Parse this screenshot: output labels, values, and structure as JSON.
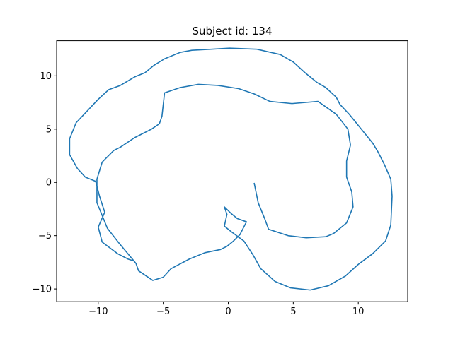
{
  "chart_data": {
    "type": "line",
    "title": "Subject id: 134",
    "xlabel": "",
    "ylabel": "",
    "xlim": [
      -13.2,
      13.8
    ],
    "ylim": [
      -11.2,
      13.3
    ],
    "grid": false,
    "x_ticks": [
      -10,
      -5,
      0,
      5,
      10
    ],
    "y_ticks": [
      -10,
      -5,
      0,
      5,
      10
    ],
    "x_tick_labels": [
      "−10",
      "−5",
      "0",
      "5",
      "10"
    ],
    "y_tick_labels": [
      "−10",
      "−5",
      "0",
      "5",
      "10"
    ],
    "series": [
      {
        "color": "#1f77b4",
        "points": [
          [
            2.0,
            -0.1
          ],
          [
            2.3,
            -1.9
          ],
          [
            2.8,
            -3.4
          ],
          [
            3.1,
            -4.4
          ],
          [
            4.6,
            -5.0
          ],
          [
            6.0,
            -5.2
          ],
          [
            7.5,
            -5.1
          ],
          [
            8.1,
            -4.8
          ],
          [
            9.1,
            -3.8
          ],
          [
            9.6,
            -2.3
          ],
          [
            9.5,
            -0.9
          ],
          [
            9.1,
            0.5
          ],
          [
            9.1,
            2.0
          ],
          [
            9.4,
            3.5
          ],
          [
            9.2,
            5.0
          ],
          [
            8.3,
            6.4
          ],
          [
            6.9,
            7.6
          ],
          [
            4.9,
            7.4
          ],
          [
            3.2,
            7.6
          ],
          [
            2.0,
            8.3
          ],
          [
            0.8,
            8.8
          ],
          [
            -0.8,
            9.1
          ],
          [
            -2.3,
            9.2
          ],
          [
            -3.7,
            8.9
          ],
          [
            -4.9,
            8.4
          ],
          [
            -5.1,
            6.2
          ],
          [
            -5.3,
            5.5
          ],
          [
            -5.9,
            5.0
          ],
          [
            -7.2,
            4.2
          ],
          [
            -8.3,
            3.3
          ],
          [
            -8.8,
            3.0
          ],
          [
            -9.7,
            1.9
          ],
          [
            -10.1,
            0.3
          ],
          [
            -10.1,
            -1.9
          ],
          [
            -9.3,
            -4.3
          ],
          [
            -8.4,
            -5.7
          ],
          [
            -7.1,
            -7.6
          ],
          [
            -6.9,
            -8.3
          ],
          [
            -5.8,
            -9.2
          ],
          [
            -5.0,
            -8.9
          ],
          [
            -4.4,
            -8.1
          ],
          [
            -3.0,
            -7.2
          ],
          [
            -1.8,
            -6.6
          ],
          [
            -0.6,
            -6.3
          ],
          [
            -0.1,
            -6.0
          ],
          [
            0.4,
            -5.5
          ],
          [
            0.9,
            -4.9
          ],
          [
            1.4,
            -3.7
          ],
          [
            0.7,
            -3.4
          ],
          [
            0.2,
            -2.9
          ],
          [
            -0.3,
            -2.3
          ],
          [
            -0.1,
            -3.0
          ],
          [
            -0.3,
            -4.1
          ],
          [
            0.2,
            -4.6
          ],
          [
            1.2,
            -5.5
          ],
          [
            1.9,
            -6.8
          ],
          [
            2.5,
            -8.1
          ],
          [
            3.6,
            -9.3
          ],
          [
            4.8,
            -9.9
          ],
          [
            6.3,
            -10.1
          ],
          [
            7.7,
            -9.7
          ],
          [
            9.0,
            -8.8
          ],
          [
            10.0,
            -7.7
          ],
          [
            11.1,
            -6.7
          ],
          [
            12.1,
            -5.5
          ],
          [
            12.5,
            -4.0
          ],
          [
            12.6,
            -1.3
          ],
          [
            12.5,
            0.3
          ],
          [
            12.0,
            1.7
          ],
          [
            11.5,
            2.9
          ],
          [
            11.1,
            3.7
          ],
          [
            10.5,
            4.6
          ],
          [
            9.9,
            5.5
          ],
          [
            9.3,
            6.4
          ],
          [
            8.6,
            7.3
          ],
          [
            8.3,
            8.0
          ],
          [
            7.5,
            8.9
          ],
          [
            6.8,
            9.4
          ],
          [
            5.9,
            10.3
          ],
          [
            5.0,
            11.3
          ],
          [
            4.0,
            12.0
          ],
          [
            2.2,
            12.5
          ],
          [
            0.1,
            12.6
          ],
          [
            -1.3,
            12.5
          ],
          [
            -2.8,
            12.4
          ],
          [
            -3.7,
            12.2
          ],
          [
            -4.9,
            11.6
          ],
          [
            -5.7,
            11.0
          ],
          [
            -6.4,
            10.3
          ],
          [
            -7.2,
            9.9
          ],
          [
            -8.3,
            9.1
          ],
          [
            -9.2,
            8.7
          ],
          [
            -10.0,
            7.8
          ],
          [
            -11.7,
            5.6
          ],
          [
            -12.2,
            4.1
          ],
          [
            -12.2,
            2.6
          ],
          [
            -11.6,
            1.3
          ],
          [
            -11.0,
            0.5
          ],
          [
            -10.2,
            0.1
          ],
          [
            -9.9,
            -1.3
          ],
          [
            -9.5,
            -2.8
          ],
          [
            -10.0,
            -4.2
          ],
          [
            -9.7,
            -5.6
          ],
          [
            -8.5,
            -6.7
          ],
          [
            -7.7,
            -7.2
          ],
          [
            -7.2,
            -7.4
          ]
        ]
      }
    ]
  }
}
